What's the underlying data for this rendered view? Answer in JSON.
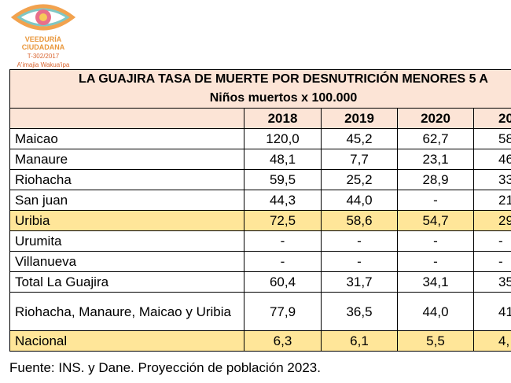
{
  "header": {
    "logo": [
      "VEEDURÍA",
      "CIUDADANA",
      "T-302/2017",
      "A'imajia Wakua'ipa"
    ]
  },
  "table": {
    "title": "LA GUAJIRA TASA DE MUERTE POR DESNUTRICIÓN MENORES 5 A",
    "subtitle": "Niños muertos x 100.000",
    "columns": [
      "2018",
      "2019",
      "2020",
      "20"
    ],
    "rows": [
      [
        "Maicao",
        "120,0",
        "45,2",
        "62,7",
        "58"
      ],
      [
        "Manaure",
        "48,1",
        "7,7",
        "23,1",
        "46"
      ],
      [
        "Riohacha",
        "59,5",
        "25,2",
        "28,9",
        "33"
      ],
      [
        "San juan",
        "44,3",
        "44,0",
        "-",
        "21"
      ],
      [
        "Uribia",
        "72,5",
        "58,6",
        "54,7",
        "29"
      ],
      [
        "Urumita",
        "-",
        "-",
        "-",
        "-"
      ],
      [
        "Villanueva",
        "-",
        "-",
        "-",
        "-"
      ],
      [
        "Total La Guajira",
        "60,4",
        "31,7",
        "34,1",
        "35"
      ],
      [
        "Riohacha, Manaure, Maicao y Uribia",
        "77,9",
        "36,5",
        "44,0",
        "41"
      ],
      [
        "Nacional",
        "6,3",
        "6,1",
        "5,5",
        "4,"
      ]
    ]
  },
  "footer": "Fuente: INS. y Dane. Proyección de población 2023."
}
